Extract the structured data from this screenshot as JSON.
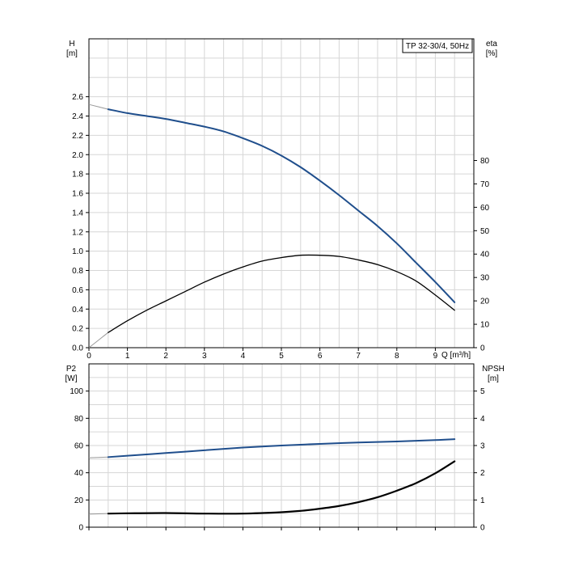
{
  "chart_data": [
    {
      "type": "line",
      "title": "TP 32-30/4, 50Hz",
      "xlabel": "Q [m³/h]",
      "ylabel": [
        "H",
        "[m]"
      ],
      "ylabel_right": [
        "eta",
        "[%]"
      ],
      "xlim": [
        0,
        10
      ],
      "ylim": [
        0,
        3.2
      ],
      "ylim_right": [
        0,
        132
      ],
      "xticks": [
        "0",
        "1",
        "2",
        "3",
        "4",
        "5",
        "6",
        "7",
        "8",
        "9"
      ],
      "yticks": [
        "0.0",
        "0.2",
        "0.4",
        "0.6",
        "0.8",
        "1.0",
        "1.2",
        "1.4",
        "1.6",
        "1.8",
        "2.0",
        "2.2",
        "2.4",
        "2.6"
      ],
      "yticks_right": [
        "0",
        "10",
        "20",
        "30",
        "40",
        "50",
        "60",
        "70",
        "80"
      ],
      "grid": true,
      "series": [
        {
          "color": "#1f4e8c",
          "axis": "left",
          "x": [
            0,
            0.5,
            1,
            1.5,
            2,
            2.5,
            3,
            3.5,
            4,
            4.5,
            5,
            5.5,
            6,
            6.5,
            7,
            7.5,
            8,
            8.5,
            9,
            9.5
          ],
          "y": [
            2.52,
            2.47,
            2.43,
            2.4,
            2.37,
            2.33,
            2.29,
            2.24,
            2.17,
            2.09,
            1.99,
            1.87,
            1.73,
            1.58,
            1.42,
            1.26,
            1.08,
            0.88,
            0.68,
            0.47
          ],
          "dashed_until": 0.5
        },
        {
          "color": "#000000",
          "axis": "right",
          "x": [
            0,
            0.5,
            1,
            1.5,
            2,
            2.5,
            3,
            3.5,
            4,
            4.5,
            5,
            5.5,
            6,
            6.5,
            7,
            7.5,
            8,
            8.5,
            9,
            9.5
          ],
          "y": [
            0,
            6.5,
            11.5,
            16,
            20,
            24,
            28,
            31.5,
            34.5,
            37,
            38.5,
            39.5,
            39.5,
            39,
            37.5,
            35.5,
            32.5,
            28.5,
            22.5,
            16
          ],
          "dashed_until": 0.5
        }
      ]
    },
    {
      "type": "line",
      "xlabel": "",
      "ylabel": [
        "P2",
        "[W]"
      ],
      "ylabel_right": [
        "NPSH",
        "[m]"
      ],
      "xlim": [
        0,
        10
      ],
      "ylim": [
        0,
        120
      ],
      "ylim_right": [
        0,
        6
      ],
      "yticks": [
        "0",
        "20",
        "40",
        "60",
        "80",
        "100"
      ],
      "yticks_right": [
        "0",
        "1",
        "2",
        "3",
        "4",
        "5"
      ],
      "grid": true,
      "series": [
        {
          "color": "#1f4e8c",
          "axis": "left",
          "x": [
            0,
            0.5,
            1,
            2,
            3,
            4,
            5,
            6,
            7,
            8,
            9,
            9.5
          ],
          "y": [
            51,
            51.5,
            52.5,
            54.5,
            56.5,
            58.5,
            60,
            61.2,
            62.2,
            63,
            64,
            64.7
          ],
          "dashed_until": 0.5
        },
        {
          "color": "#000000",
          "axis": "right",
          "x": [
            0,
            0.5,
            1,
            2,
            3,
            4,
            5,
            5.5,
            6,
            6.5,
            7,
            7.5,
            8,
            8.5,
            9,
            9.5
          ],
          "y": [
            0.48,
            0.5,
            0.51,
            0.52,
            0.5,
            0.5,
            0.55,
            0.6,
            0.68,
            0.78,
            0.92,
            1.1,
            1.34,
            1.62,
            1.98,
            2.42
          ],
          "dashed_until": 0.5,
          "thick": true
        }
      ]
    }
  ]
}
